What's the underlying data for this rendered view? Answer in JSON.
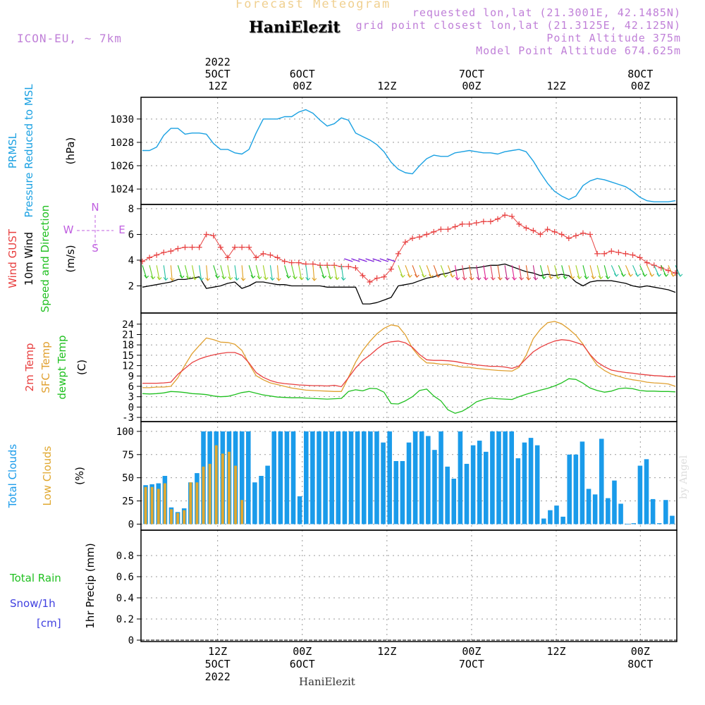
{
  "header": {
    "title": "Forecast Meteogram",
    "location": "HaniElezit",
    "model": "ICON-EU, ~ 7km",
    "requested": "requested lon,lat (21.3001E, 42.1485N)",
    "grid_point": "grid point closest lon,lat (21.3125E, 42.125N)",
    "point_altitude": "Point Altitude 375m",
    "model_altitude": "Model Point Altitude 674.625m",
    "footer": "HaniElezit",
    "credit": "by Angel"
  },
  "colors": {
    "pressure": "#1ba1e2",
    "gust": "#e84040",
    "wind": "#000000",
    "temp2m": "#e84040",
    "sfc": "#e0a030",
    "dewpt": "#20c020",
    "total_clouds": "#1a9bea",
    "low_clouds": "#e0a830",
    "rain": "#20c020",
    "snow": "#4040e0",
    "header": "#c080d8",
    "title": "#f0d090"
  },
  "time_axis": {
    "top": [
      {
        "t": 0.143,
        "lines": [
          "2022",
          "5OCT",
          "12Z"
        ]
      },
      {
        "t": 0.301,
        "lines": [
          "6OCT",
          "00Z"
        ]
      },
      {
        "t": 0.459,
        "lines": [
          "12Z"
        ]
      },
      {
        "t": 0.617,
        "lines": [
          "7OCT",
          "00Z"
        ]
      },
      {
        "t": 0.775,
        "lines": [
          "12Z"
        ]
      },
      {
        "t": 0.932,
        "lines": [
          "8OCT",
          "00Z"
        ]
      }
    ],
    "bottom": [
      {
        "t": 0.143,
        "lines": [
          "12Z",
          "5OCT",
          "2022"
        ]
      },
      {
        "t": 0.301,
        "lines": [
          "00Z",
          "6OCT"
        ]
      },
      {
        "t": 0.459,
        "lines": [
          "12Z"
        ]
      },
      {
        "t": 0.617,
        "lines": [
          "00Z",
          "7OCT"
        ]
      },
      {
        "t": 0.775,
        "lines": [
          "12Z"
        ]
      },
      {
        "t": 0.932,
        "lines": [
          "00Z",
          "8OCT"
        ]
      }
    ]
  },
  "panels": {
    "pressure": {
      "labels": [
        {
          "text": "PRMSL",
          "color": "#1ba1e2"
        },
        {
          "text": "Pressure Reduced to MSL",
          "color": "#1ba1e2"
        }
      ],
      "unit": "(hPa)",
      "ylim": [
        1022.8,
        1031.5
      ],
      "ticks": [
        1024,
        1026,
        1028,
        1030
      ]
    },
    "wind": {
      "labels": [
        {
          "text": "Wind GUST",
          "color": "#e84040"
        },
        {
          "text": "10m Wind",
          "color": "#000000"
        },
        {
          "text": "Speed and Direction",
          "color": "#20c020"
        }
      ],
      "unit": "(m/s)",
      "compass": {
        "n": "N",
        "s": "S",
        "w": "W",
        "e": "E"
      },
      "ylim": [
        0,
        8
      ],
      "ticks": [
        2,
        4,
        6,
        8
      ]
    },
    "temp": {
      "labels": [
        {
          "text": "2m Temp",
          "color": "#e84040"
        },
        {
          "text": "SFC Temp",
          "color": "#e0a030"
        },
        {
          "text": "dewpt Temp",
          "color": "#20c020"
        }
      ],
      "unit": "(C)",
      "ylim": [
        -3.8,
        26
      ],
      "ticks": [
        -3,
        0,
        3,
        6,
        9,
        12,
        15,
        18,
        21,
        24
      ]
    },
    "clouds": {
      "labels": [
        {
          "text": "Total Clouds",
          "color": "#1a9bea"
        },
        {
          "text": "Low Clouds",
          "color": "#e0a830"
        }
      ],
      "unit": "(%)",
      "ylim": [
        -5,
        106
      ],
      "ticks": [
        0,
        25,
        50,
        75,
        100
      ]
    },
    "precip": {
      "labels": [
        {
          "text": "Total  Rain",
          "color": "#20c020"
        },
        {
          "text": "Snow/1h",
          "color": "#4040e0"
        },
        {
          "text": "[cm]",
          "color": "#4040e0"
        }
      ],
      "unit": "1hr Precip (mm)",
      "ylim": [
        0,
        1.0
      ],
      "ticks": [
        0,
        0.2,
        0.4,
        0.6,
        0.8
      ]
    }
  },
  "chart_data": {
    "type": "line",
    "title": "Forecast Meteogram",
    "x_span_hours": 96,
    "pressure_hPa": [
      1027.3,
      1027.3,
      1027.6,
      1028.6,
      1029.2,
      1029.2,
      1028.7,
      1028.8,
      1028.8,
      1028.7,
      1027.9,
      1027.4,
      1027.4,
      1027.1,
      1027.0,
      1027.4,
      1028.8,
      1030.0,
      1030.0,
      1030.0,
      1030.2,
      1030.2,
      1030.6,
      1030.8,
      1030.5,
      1029.9,
      1029.4,
      1029.6,
      1030.1,
      1029.9,
      1028.8,
      1028.5,
      1028.2,
      1027.8,
      1027.2,
      1026.3,
      1025.7,
      1025.4,
      1025.3,
      1026.0,
      1026.6,
      1026.9,
      1026.8,
      1026.8,
      1027.1,
      1027.2,
      1027.3,
      1027.2,
      1027.1,
      1027.1,
      1027.0,
      1027.2,
      1027.3,
      1027.4,
      1027.2,
      1026.4,
      1025.4,
      1024.5,
      1023.8,
      1023.4,
      1023.1,
      1023.4,
      1024.3,
      1024.7,
      1024.9,
      1024.8,
      1024.6,
      1024.4,
      1024.2,
      1023.8,
      1023.3,
      1023.0,
      1022.9,
      1022.9,
      1022.9,
      1023.0
    ],
    "gust_ms": [
      3.9,
      4.2,
      4.4,
      4.6,
      4.7,
      4.9,
      5.0,
      5.0,
      5.0,
      6.0,
      5.9,
      5.0,
      4.2,
      5.0,
      5.0,
      5.0,
      4.2,
      4.5,
      4.4,
      4.2,
      3.9,
      3.8,
      3.8,
      3.7,
      3.7,
      3.6,
      3.6,
      3.6,
      3.5,
      3.5,
      3.4,
      2.8,
      2.3,
      2.6,
      2.7,
      3.3,
      4.5,
      5.4,
      5.7,
      5.8,
      6.0,
      6.2,
      6.4,
      6.4,
      6.6,
      6.8,
      6.8,
      6.9,
      7.0,
      7.0,
      7.2,
      7.5,
      7.4,
      6.8,
      6.5,
      6.3,
      6.0,
      6.4,
      6.2,
      6.0,
      5.7,
      5.9,
      6.1,
      6.0,
      4.5,
      4.5,
      4.7,
      4.6,
      4.5,
      4.4,
      4.2,
      3.8,
      3.6,
      3.4,
      3.2,
      3.0
    ],
    "wind10m_ms": [
      1.9,
      2.0,
      2.1,
      2.2,
      2.3,
      2.5,
      2.5,
      2.6,
      2.7,
      1.8,
      1.9,
      2.0,
      2.2,
      2.3,
      1.8,
      2.0,
      2.3,
      2.3,
      2.2,
      2.1,
      2.1,
      2.0,
      2.0,
      2.0,
      2.0,
      2.0,
      1.9,
      1.9,
      1.9,
      1.9,
      1.9,
      0.6,
      0.6,
      0.7,
      0.9,
      1.1,
      2.0,
      2.1,
      2.2,
      2.4,
      2.6,
      2.7,
      2.9,
      3.0,
      3.2,
      3.3,
      3.4,
      3.4,
      3.5,
      3.6,
      3.6,
      3.7,
      3.5,
      3.3,
      3.1,
      3.0,
      2.8,
      2.9,
      2.8,
      2.9,
      2.8,
      2.3,
      2.0,
      2.3,
      2.4,
      2.4,
      2.4,
      2.3,
      2.2,
      2.0,
      1.9,
      2.0,
      1.9,
      1.8,
      1.7,
      1.5
    ],
    "temp2m_C": [
      6.9,
      6.9,
      6.9,
      7.0,
      7.2,
      9.5,
      11.2,
      12.9,
      13.9,
      14.6,
      15.1,
      15.5,
      15.8,
      15.8,
      15.0,
      12.8,
      10.0,
      8.6,
      7.7,
      7.1,
      6.8,
      6.6,
      6.4,
      6.3,
      6.2,
      6.2,
      6.1,
      6.3,
      5.9,
      8.5,
      11.3,
      13.5,
      15.0,
      16.8,
      18.3,
      18.9,
      19.1,
      18.6,
      17.3,
      15.2,
      13.7,
      13.5,
      13.5,
      13.4,
      13.2,
      12.8,
      12.5,
      12.2,
      12.0,
      11.8,
      11.8,
      11.6,
      11.2,
      11.9,
      14.0,
      16.0,
      17.3,
      18.3,
      19.1,
      19.5,
      19.3,
      18.7,
      18.0,
      15.2,
      13.0,
      11.7,
      10.7,
      10.3,
      10.0,
      9.8,
      9.5,
      9.3,
      9.1,
      9.0,
      8.8,
      8.8
    ],
    "sfc_C": [
      5.6,
      5.6,
      5.8,
      5.8,
      6.0,
      8.5,
      12.2,
      15.5,
      17.8,
      20.0,
      19.5,
      18.8,
      18.7,
      18.2,
      16.4,
      12.5,
      9.1,
      7.9,
      7.0,
      6.5,
      6.0,
      5.5,
      5.2,
      4.9,
      4.8,
      4.7,
      4.6,
      4.5,
      4.5,
      8.6,
      13.0,
      16.4,
      19.0,
      21.2,
      22.8,
      23.8,
      23.4,
      20.9,
      17.0,
      14.5,
      12.8,
      12.7,
      12.4,
      12.4,
      12.0,
      11.6,
      11.5,
      11.2,
      11.0,
      10.8,
      10.6,
      10.5,
      10.4,
      11.5,
      15.0,
      19.8,
      22.5,
      24.4,
      24.8,
      24.1,
      22.6,
      20.8,
      18.2,
      15.0,
      12.1,
      10.6,
      9.5,
      8.9,
      8.3,
      7.9,
      7.6,
      7.2,
      7.0,
      6.9,
      6.7,
      6.0
    ],
    "dewpt_C": [
      3.9,
      3.8,
      3.9,
      4.1,
      4.5,
      4.4,
      4.2,
      3.9,
      3.8,
      3.6,
      3.2,
      3.0,
      3.1,
      3.6,
      4.2,
      4.5,
      4.0,
      3.5,
      3.2,
      2.9,
      2.8,
      2.7,
      2.7,
      2.6,
      2.5,
      2.4,
      2.3,
      2.4,
      2.5,
      4.5,
      5.0,
      4.7,
      5.4,
      5.3,
      4.3,
      1.0,
      0.9,
      1.8,
      3.0,
      4.8,
      5.2,
      3.2,
      1.8,
      -0.8,
      -1.8,
      -1.2,
      0.0,
      1.5,
      2.2,
      2.6,
      2.4,
      2.3,
      2.2,
      3.0,
      3.7,
      4.3,
      4.9,
      5.4,
      6.1,
      7.0,
      8.2,
      8.0,
      6.9,
      5.5,
      4.8,
      4.3,
      4.6,
      5.3,
      5.5,
      5.3,
      4.8,
      4.6,
      4.6,
      4.5,
      4.5,
      4.4
    ],
    "total_clouds_pct": [
      42,
      43,
      44,
      52,
      18,
      13,
      17,
      45,
      55,
      100,
      100,
      100,
      100,
      100,
      100,
      100,
      100,
      45,
      52,
      63,
      100,
      100,
      100,
      100,
      30,
      100,
      100,
      100,
      100,
      100,
      100,
      100,
      100,
      100,
      100,
      100,
      100,
      88,
      100,
      68,
      68,
      88,
      100,
      100,
      95,
      80,
      100,
      62,
      49,
      100,
      65,
      85,
      90,
      78,
      100,
      100,
      100,
      100,
      71,
      88,
      93,
      85,
      6,
      15,
      20,
      8,
      75,
      75,
      89,
      38,
      32,
      92,
      28,
      47,
      22,
      0,
      1,
      63,
      70,
      27,
      1,
      26,
      9
    ],
    "low_clouds_pct": [
      40,
      40,
      38,
      44,
      16,
      12,
      15,
      45,
      45,
      62,
      65,
      85,
      76,
      78,
      63,
      26
    ],
    "rain_mm": [],
    "snow_cm": []
  }
}
